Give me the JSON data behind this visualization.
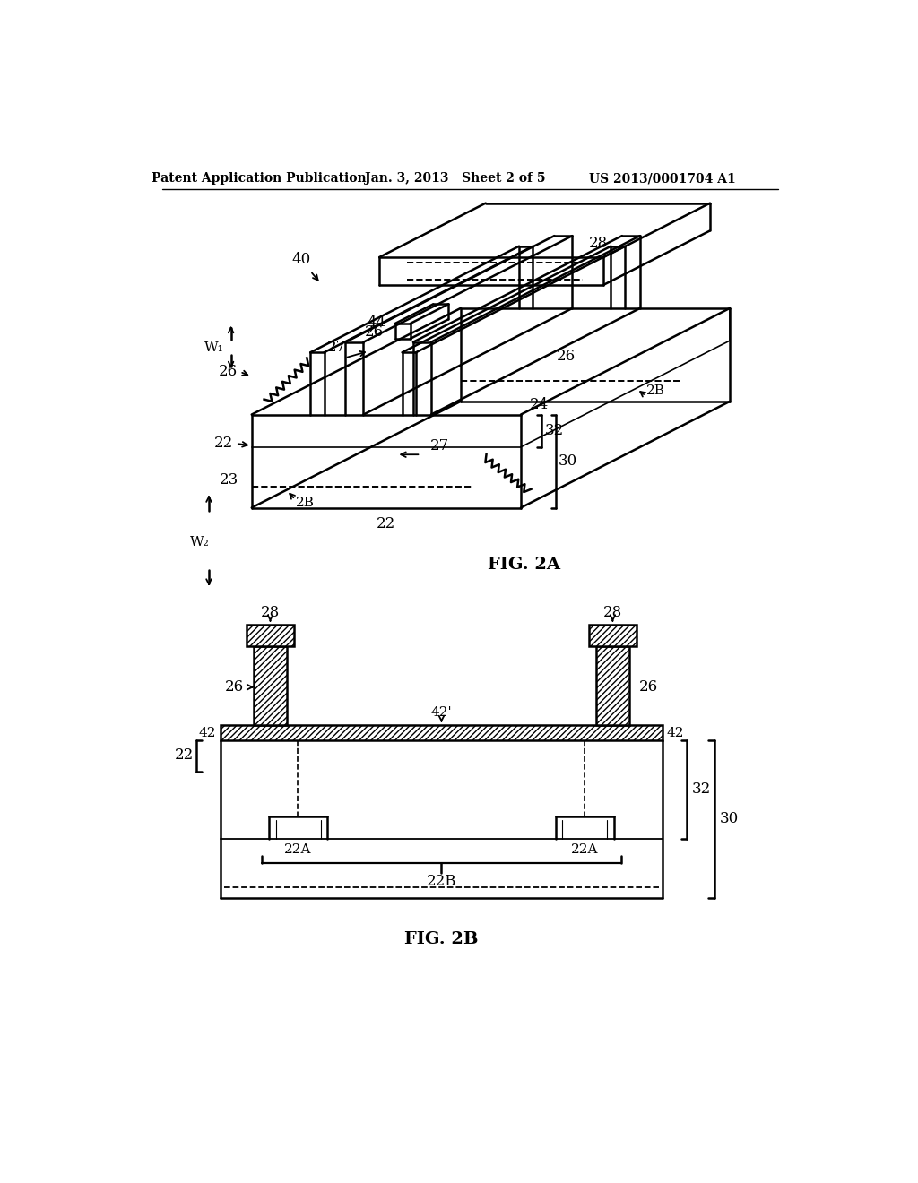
{
  "header_left": "Patent Application Publication",
  "header_mid": "Jan. 3, 2013   Sheet 2 of 5",
  "header_right": "US 2013/0001704 A1",
  "fig2a_label": "FIG. 2A",
  "fig2b_label": "FIG. 2B",
  "bg_color": "#ffffff",
  "line_color": "#000000"
}
